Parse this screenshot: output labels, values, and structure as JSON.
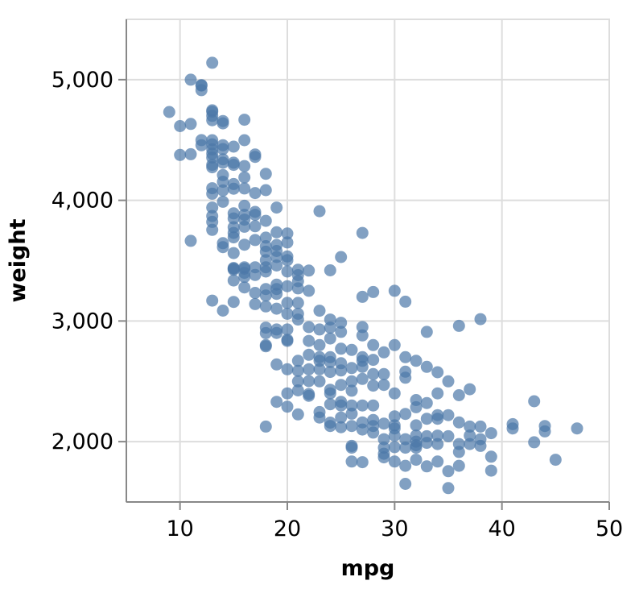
{
  "chart_data": {
    "type": "scatter",
    "title": "",
    "xlabel": "mpg",
    "ylabel": "weight",
    "xlim": [
      5,
      50
    ],
    "ylim": [
      1500,
      5500
    ],
    "x_ticks": [
      10,
      20,
      30,
      40,
      50
    ],
    "x_tick_labels": [
      "10",
      "20",
      "30",
      "40",
      "50"
    ],
    "y_ticks": [
      2000,
      3000,
      4000,
      5000
    ],
    "y_tick_labels": [
      "2,000",
      "3,000",
      "4,000",
      "5,000"
    ],
    "grid": true,
    "point_color": "#4c78a8",
    "series": [
      {
        "points": [
          [
            9,
            4732
          ],
          [
            10,
            4615
          ],
          [
            11,
            4633
          ],
          [
            10,
            4376
          ],
          [
            11,
            4382
          ],
          [
            11,
            5000
          ],
          [
            11,
            3664
          ],
          [
            12,
            4955
          ],
          [
            12,
            4951
          ],
          [
            12,
            4913
          ],
          [
            12,
            4499
          ],
          [
            12,
            4456
          ],
          [
            13,
            5140
          ],
          [
            13,
            4746
          ],
          [
            13,
            4735
          ],
          [
            13,
            4700
          ],
          [
            13,
            4664
          ],
          [
            13,
            4498
          ],
          [
            13,
            4464
          ],
          [
            13,
            4422
          ],
          [
            13,
            4386
          ],
          [
            13,
            4354
          ],
          [
            13,
            4294
          ],
          [
            13,
            4274
          ],
          [
            13,
            4100
          ],
          [
            13,
            4055
          ],
          [
            13,
            3940
          ],
          [
            13,
            3870
          ],
          [
            13,
            3821
          ],
          [
            13,
            3755
          ],
          [
            13,
            3169
          ],
          [
            14,
            4657
          ],
          [
            14,
            4638
          ],
          [
            14,
            4457
          ],
          [
            14,
            4425
          ],
          [
            14,
            4340
          ],
          [
            14,
            4312
          ],
          [
            14,
            4209
          ],
          [
            14,
            4154
          ],
          [
            14,
            4082
          ],
          [
            14,
            3988
          ],
          [
            14,
            3645
          ],
          [
            14,
            3612
          ],
          [
            14,
            3086
          ],
          [
            15,
            4445
          ],
          [
            15,
            4312
          ],
          [
            15,
            4294
          ],
          [
            15,
            4135
          ],
          [
            15,
            4096
          ],
          [
            15,
            3892
          ],
          [
            15,
            3850
          ],
          [
            15,
            3777
          ],
          [
            15,
            3730
          ],
          [
            15,
            3693
          ],
          [
            15,
            3563
          ],
          [
            15,
            3439
          ],
          [
            15,
            3434
          ],
          [
            15,
            3425
          ],
          [
            15,
            3336
          ],
          [
            15,
            3158
          ],
          [
            16,
            4668
          ],
          [
            16,
            4498
          ],
          [
            16,
            4284
          ],
          [
            16,
            4190
          ],
          [
            16,
            4098
          ],
          [
            16,
            3955
          ],
          [
            16,
            3880
          ],
          [
            16,
            3840
          ],
          [
            16,
            3781
          ],
          [
            16,
            3632
          ],
          [
            16,
            3445
          ],
          [
            16,
            3433
          ],
          [
            16,
            3399
          ],
          [
            16,
            3365
          ],
          [
            16,
            3278
          ],
          [
            17,
            4380
          ],
          [
            17,
            4360
          ],
          [
            17,
            4060
          ],
          [
            17,
            3904
          ],
          [
            17,
            3880
          ],
          [
            17,
            3785
          ],
          [
            17,
            3671
          ],
          [
            17,
            3445
          ],
          [
            17,
            3381
          ],
          [
            17,
            3233
          ],
          [
            17,
            3140
          ],
          [
            18,
            4220
          ],
          [
            18,
            4084
          ],
          [
            18,
            3830
          ],
          [
            18,
            3691
          ],
          [
            18,
            3620
          ],
          [
            18,
            3574
          ],
          [
            18,
            3504
          ],
          [
            18,
            3445
          ],
          [
            18,
            3410
          ],
          [
            18,
            3265
          ],
          [
            18,
            3211
          ],
          [
            18,
            3121
          ],
          [
            18,
            2945
          ],
          [
            18,
            2900
          ],
          [
            18,
            2800
          ],
          [
            18,
            2790
          ],
          [
            18,
            2125
          ],
          [
            19,
            3940
          ],
          [
            19,
            3735
          ],
          [
            19,
            3630
          ],
          [
            19,
            3580
          ],
          [
            19,
            3530
          ],
          [
            19,
            3460
          ],
          [
            19,
            3302
          ],
          [
            19,
            3265
          ],
          [
            19,
            3225
          ],
          [
            19,
            3102
          ],
          [
            19,
            2930
          ],
          [
            19,
            2901
          ],
          [
            19,
            2640
          ],
          [
            19,
            2330
          ],
          [
            20,
            3725
          ],
          [
            20,
            3651
          ],
          [
            20,
            3535
          ],
          [
            20,
            3504
          ],
          [
            20,
            3410
          ],
          [
            20,
            3288
          ],
          [
            20,
            3150
          ],
          [
            20,
            3060
          ],
          [
            20,
            2930
          ],
          [
            20,
            2845
          ],
          [
            20,
            2835
          ],
          [
            20,
            2600
          ],
          [
            20,
            2400
          ],
          [
            20,
            2290
          ],
          [
            21,
            3425
          ],
          [
            21,
            3380
          ],
          [
            21,
            3330
          ],
          [
            21,
            3270
          ],
          [
            21,
            3150
          ],
          [
            21,
            3060
          ],
          [
            21,
            3012
          ],
          [
            21,
            2670
          ],
          [
            21,
            2587
          ],
          [
            21,
            2500
          ],
          [
            21,
            2425
          ],
          [
            21,
            2226
          ],
          [
            22,
            3418
          ],
          [
            22,
            3250
          ],
          [
            22,
            2950
          ],
          [
            22,
            2835
          ],
          [
            22,
            2720
          ],
          [
            22,
            2600
          ],
          [
            22,
            2502
          ],
          [
            22,
            2395
          ],
          [
            22,
            2380
          ],
          [
            23,
            3910
          ],
          [
            23,
            3085
          ],
          [
            23,
            2930
          ],
          [
            23,
            2800
          ],
          [
            23,
            2700
          ],
          [
            23,
            2670
          ],
          [
            23,
            2600
          ],
          [
            23,
            2500
          ],
          [
            23,
            2245
          ],
          [
            23,
            2200
          ],
          [
            24,
            3420
          ],
          [
            24,
            3012
          ],
          [
            24,
            2945
          ],
          [
            24,
            2855
          ],
          [
            24,
            2700
          ],
          [
            24,
            2660
          ],
          [
            24,
            2578
          ],
          [
            24,
            2430
          ],
          [
            24,
            2400
          ],
          [
            24,
            2310
          ],
          [
            24,
            2158
          ],
          [
            24,
            2130
          ],
          [
            25,
            3530
          ],
          [
            25,
            2985
          ],
          [
            25,
            2910
          ],
          [
            25,
            2770
          ],
          [
            25,
            2650
          ],
          [
            25,
            2590
          ],
          [
            25,
            2470
          ],
          [
            25,
            2330
          ],
          [
            25,
            2300
          ],
          [
            25,
            2200
          ],
          [
            25,
            2120
          ],
          [
            26,
            2760
          ],
          [
            26,
            2610
          ],
          [
            26,
            2500
          ],
          [
            26,
            2422
          ],
          [
            26,
            2300
          ],
          [
            26,
            2232
          ],
          [
            26,
            2130
          ],
          [
            26,
            1965
          ],
          [
            26,
            1950
          ],
          [
            26,
            1835
          ],
          [
            27,
            3730
          ],
          [
            27,
            3200
          ],
          [
            27,
            2950
          ],
          [
            27,
            2880
          ],
          [
            27,
            2700
          ],
          [
            27,
            2670
          ],
          [
            27,
            2620
          ],
          [
            27,
            2520
          ],
          [
            27,
            2300
          ],
          [
            27,
            2160
          ],
          [
            27,
            2100
          ],
          [
            27,
            1830
          ],
          [
            28,
            3240
          ],
          [
            28,
            2800
          ],
          [
            28,
            2678
          ],
          [
            28,
            2560
          ],
          [
            28,
            2464
          ],
          [
            28,
            2300
          ],
          [
            28,
            2180
          ],
          [
            28,
            2130
          ],
          [
            28,
            2075
          ],
          [
            29,
            2740
          ],
          [
            29,
            2560
          ],
          [
            29,
            2470
          ],
          [
            29,
            2150
          ],
          [
            29,
            2020
          ],
          [
            29,
            1950
          ],
          [
            29,
            1900
          ],
          [
            29,
            1870
          ],
          [
            30,
            3250
          ],
          [
            30,
            2800
          ],
          [
            30,
            2400
          ],
          [
            30,
            2210
          ],
          [
            30,
            2135
          ],
          [
            30,
            2110
          ],
          [
            30,
            2050
          ],
          [
            30,
            1955
          ],
          [
            30,
            1835
          ],
          [
            31,
            3160
          ],
          [
            31,
            2700
          ],
          [
            31,
            2580
          ],
          [
            31,
            2530
          ],
          [
            31,
            2230
          ],
          [
            31,
            2020
          ],
          [
            31,
            1950
          ],
          [
            31,
            1800
          ],
          [
            31,
            1650
          ],
          [
            32,
            2670
          ],
          [
            32,
            2345
          ],
          [
            32,
            2285
          ],
          [
            32,
            2135
          ],
          [
            32,
            2050
          ],
          [
            32,
            2000
          ],
          [
            32,
            1970
          ],
          [
            32,
            1950
          ],
          [
            32,
            1850
          ],
          [
            33,
            2910
          ],
          [
            33,
            2620
          ],
          [
            33,
            2320
          ],
          [
            33,
            2190
          ],
          [
            33,
            2045
          ],
          [
            33,
            1990
          ],
          [
            33,
            1795
          ],
          [
            34,
            2575
          ],
          [
            34,
            2400
          ],
          [
            34,
            2220
          ],
          [
            34,
            2190
          ],
          [
            34,
            2050
          ],
          [
            34,
            1980
          ],
          [
            34,
            1835
          ],
          [
            35,
            2500
          ],
          [
            35,
            2220
          ],
          [
            35,
            2045
          ],
          [
            35,
            1755
          ],
          [
            35,
            1615
          ],
          [
            36,
            2960
          ],
          [
            36,
            2385
          ],
          [
            36,
            2160
          ],
          [
            36,
            1980
          ],
          [
            36,
            1800
          ],
          [
            36,
            1915
          ],
          [
            37,
            2434
          ],
          [
            37,
            2125
          ],
          [
            37,
            2050
          ],
          [
            37,
            1980
          ],
          [
            38,
            3015
          ],
          [
            38,
            2125
          ],
          [
            38,
            2020
          ],
          [
            38,
            1965
          ],
          [
            39,
            2070
          ],
          [
            39,
            1875
          ],
          [
            39,
            1760
          ],
          [
            41,
            2110
          ],
          [
            41,
            2145
          ],
          [
            43,
            1995
          ],
          [
            43,
            2335
          ],
          [
            44,
            2130
          ],
          [
            44,
            2085
          ],
          [
            45,
            1850
          ],
          [
            47,
            2110
          ]
        ]
      }
    ]
  }
}
